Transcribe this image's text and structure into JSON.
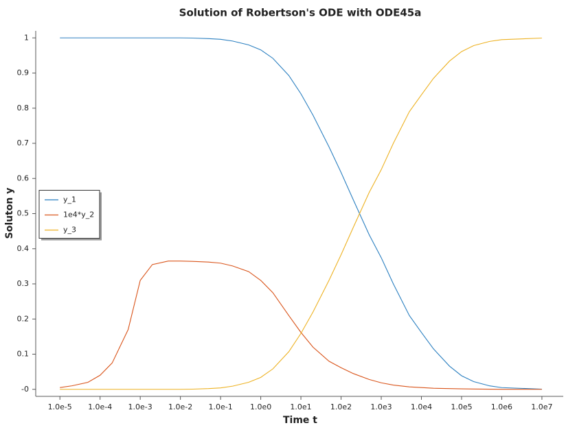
{
  "chart_data": {
    "type": "line",
    "title": "Solution of Robertson's ODE with ODE45a",
    "x_label": "Time t",
    "y_label": "Soluton y",
    "x_scale": "log",
    "legend": "left",
    "grid": false,
    "x": [
      1e-05,
      2e-05,
      5e-05,
      0.0001,
      0.0002,
      0.0005,
      0.001,
      0.002,
      0.005,
      0.01,
      0.02,
      0.05,
      0.1,
      0.2,
      0.5,
      1,
      2,
      5,
      10,
      20,
      50,
      100,
      200,
      500,
      1000,
      2000,
      5000,
      10000,
      20000,
      50000,
      100000,
      200000,
      500000,
      1000000,
      10000000
    ],
    "series": [
      {
        "name": "y_1",
        "color": "#2a7fc0",
        "values": [
          1,
          1,
          1,
          1,
          1,
          1,
          1,
          1,
          1,
          1,
          0.9995,
          0.998,
          0.996,
          0.991,
          0.98,
          0.966,
          0.942,
          0.893,
          0.841,
          0.78,
          0.69,
          0.617,
          0.54,
          0.44,
          0.3745,
          0.3,
          0.21,
          0.1618,
          0.115,
          0.066,
          0.0386,
          0.022,
          0.0098,
          0.0049,
          0.0005
        ]
      },
      {
        "name": "1e4*y_2",
        "color": "#d95319",
        "values": [
          0.005,
          0.01,
          0.02,
          0.04,
          0.075,
          0.17,
          0.31,
          0.355,
          0.365,
          0.365,
          0.364,
          0.362,
          0.359,
          0.351,
          0.335,
          0.31,
          0.275,
          0.21,
          0.162,
          0.12,
          0.08,
          0.0615,
          0.045,
          0.028,
          0.0185,
          0.012,
          0.007,
          0.005,
          0.003,
          0.002,
          0.0014,
          0.0008,
          0.0004,
          0.0002,
          0
        ]
      },
      {
        "name": "y_3",
        "color": "#edb120",
        "values": [
          0,
          0,
          0,
          0,
          0,
          0,
          0,
          0,
          0,
          0,
          0.0005,
          0.002,
          0.004,
          0.009,
          0.02,
          0.034,
          0.058,
          0.107,
          0.159,
          0.22,
          0.31,
          0.383,
          0.46,
          0.56,
          0.625,
          0.7,
          0.79,
          0.838,
          0.885,
          0.934,
          0.961,
          0.978,
          0.99,
          0.995,
          0.9995
        ]
      }
    ],
    "xlim": [
      2.5e-06,
      34000000
    ],
    "ylim": [
      -0.02,
      1.02
    ],
    "xticks": [
      {
        "value": 1e-05,
        "label": "1.0e-5"
      },
      {
        "value": 0.0001,
        "label": "1.0e-4"
      },
      {
        "value": 0.001,
        "label": "1.0e-3"
      },
      {
        "value": 0.01,
        "label": "1.0e-2"
      },
      {
        "value": 0.1,
        "label": "1.0e-1"
      },
      {
        "value": 1,
        "label": "1.0e0"
      },
      {
        "value": 10,
        "label": "1.0e1"
      },
      {
        "value": 100,
        "label": "1.0e2"
      },
      {
        "value": 1000,
        "label": "1.0e3"
      },
      {
        "value": 10000,
        "label": "1.0e4"
      },
      {
        "value": 100000,
        "label": "1.0e5"
      },
      {
        "value": 1000000,
        "label": "1.0e6"
      },
      {
        "value": 10000000,
        "label": "1.0e7"
      }
    ],
    "yticks": [
      {
        "value": 0,
        "label": "-0"
      },
      0.1,
      0.2,
      0.3,
      0.4,
      0.5,
      0.6,
      0.7,
      0.8,
      0.9,
      1
    ]
  }
}
